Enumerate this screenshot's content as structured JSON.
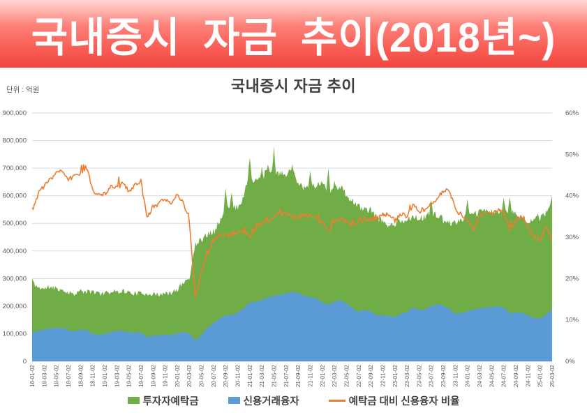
{
  "banner": {
    "title": "국내증시 자금 추이(2018년~)"
  },
  "chart": {
    "title": "국내증시 자금 추이",
    "unit_label": "단위 : 억원",
    "legend": [
      {
        "label": "투자자예탁금",
        "color": "#70ad47",
        "type": "area"
      },
      {
        "label": "신용거래융자",
        "color": "#5b9bd5",
        "type": "area"
      },
      {
        "label": "예탁금 대비 신용융자 비율",
        "color": "#ed7d31",
        "type": "line"
      }
    ]
  },
  "colors": {
    "banner_top": "#ffd6d2",
    "banner_bottom": "#f2453f",
    "green": "#70ad47",
    "blue": "#5b9bd5",
    "orange": "#ed7d31",
    "grid": "#d9d9d9",
    "axis_line": "#c6c6c6",
    "axis_text": "#595959",
    "title_text": "#404040"
  },
  "chart_data": {
    "type": "area",
    "title": "국내증시 자금 추이",
    "legend_position": "bottom",
    "grid": "horizontal",
    "x": [
      "18-01",
      "18-02",
      "18-03",
      "18-04",
      "18-05",
      "18-06",
      "18-07",
      "18-08",
      "18-09",
      "18-10",
      "18-11",
      "18-12",
      "19-01",
      "19-02",
      "19-03",
      "19-04",
      "19-05",
      "19-06",
      "19-07",
      "19-08",
      "19-09",
      "19-10",
      "19-11",
      "19-12",
      "20-01",
      "20-02",
      "20-03",
      "20-04",
      "20-05",
      "20-06",
      "20-07",
      "20-08",
      "20-09",
      "20-10",
      "20-11",
      "20-12",
      "21-01",
      "21-02",
      "21-03",
      "21-04",
      "21-05",
      "21-06",
      "21-07",
      "21-08",
      "21-09",
      "21-10",
      "21-11",
      "21-12",
      "22-01",
      "22-02",
      "22-03",
      "22-04",
      "22-05",
      "22-06",
      "22-07",
      "22-08",
      "22-09",
      "22-10",
      "22-11",
      "22-12",
      "23-01",
      "23-02",
      "23-03",
      "23-04",
      "23-05",
      "23-06",
      "23-07",
      "23-08",
      "23-09",
      "23-10",
      "23-11",
      "23-12",
      "24-01",
      "24-02",
      "24-03",
      "24-04",
      "24-05",
      "24-06",
      "24-07",
      "24-08",
      "24-09",
      "24-10",
      "24-11",
      "24-12",
      "25-01",
      "25-02",
      "25-03"
    ],
    "x_tick_labels": [
      "18-01-02",
      "18-03-02",
      "18-05-02",
      "18-07-02",
      "18-09-02",
      "18-11-02",
      "19-01-02",
      "19-03-02",
      "19-05-02",
      "19-07-02",
      "19-09-02",
      "19-11-02",
      "20-01-02",
      "20-03-02",
      "20-05-02",
      "20-07-02",
      "20-09-02",
      "20-11-02",
      "21-01-02",
      "21-03-02",
      "21-05-02",
      "21-07-02",
      "21-09-02",
      "21-11-02",
      "22-01-02",
      "22-03-02",
      "22-05-02",
      "22-07-02",
      "22-09-02",
      "22-11-02",
      "23-01-02",
      "23-03-02",
      "23-05-02",
      "23-07-02",
      "23-09-02",
      "23-11-02",
      "24-01-02",
      "24-03-02",
      "24-05-02",
      "24-07-02",
      "24-09-02",
      "24-11-02",
      "25-01-02",
      "25-03-02"
    ],
    "y_left": {
      "ticks": [
        "0",
        "100,000",
        "200,000",
        "300,000",
        "400,000",
        "500,000",
        "600,000",
        "700,000",
        "800,000",
        "900,000"
      ],
      "lim": [
        0,
        900000
      ]
    },
    "y_right": {
      "ticks": [
        "0%",
        "10%",
        "20%",
        "30%",
        "40%",
        "50%",
        "60%"
      ],
      "lim": [
        0,
        60
      ]
    },
    "series": [
      {
        "name": "투자자예탁금",
        "axis": "left",
        "type": "area",
        "color": "#70ad47",
        "values": [
          285000,
          268000,
          262000,
          270000,
          266000,
          258000,
          250000,
          246000,
          255000,
          250000,
          254000,
          245000,
          247000,
          251000,
          253000,
          256000,
          249000,
          247000,
          245000,
          247000,
          243000,
          241000,
          245000,
          247000,
          260000,
          285000,
          300000,
          425000,
          440000,
          460000,
          475000,
          505000,
          550000,
          555000,
          560000,
          600000,
          680000,
          650000,
          660000,
          700000,
          670000,
          680000,
          680000,
          690000,
          650000,
          630000,
          640000,
          640000,
          645000,
          620000,
          630000,
          635000,
          600000,
          580000,
          560000,
          555000,
          545000,
          520000,
          510000,
          490000,
          500000,
          510000,
          510000,
          530000,
          520000,
          520000,
          540000,
          530000,
          510000,
          500000,
          505000,
          515000,
          525000,
          530000,
          540000,
          550000,
          540000,
          540000,
          550000,
          545000,
          530000,
          520000,
          510000,
          515000,
          515000,
          535000,
          570000
        ]
      },
      {
        "name": "신용거래융자",
        "axis": "left",
        "type": "area",
        "color": "#5b9bd5",
        "values": [
          104000,
          110000,
          116000,
          120000,
          122000,
          120000,
          112000,
          110000,
          113000,
          115000,
          99000,
          95000,
          98000,
          105000,
          109000,
          112000,
          104000,
          103000,
          105000,
          88000,
          92000,
          94000,
          97000,
          96000,
          102000,
          105000,
          100000,
          75000,
          95000,
          122000,
          138000,
          154000,
          166000,
          168000,
          176000,
          192000,
          212000,
          216000,
          222000,
          232000,
          236000,
          242000,
          246000,
          252000,
          249000,
          238000,
          233000,
          228000,
          214000,
          206000,
          216000,
          222000,
          210000,
          192000,
          178000,
          186000,
          182000,
          166000,
          167000,
          163000,
          160000,
          172000,
          178000,
          196000,
          186000,
          188000,
          200000,
          205000,
          202000,
          190000,
          172000,
          176000,
          182000,
          186000,
          192000,
          196000,
          197000,
          199000,
          197000,
          176000,
          176000,
          176000,
          166000,
          158000,
          156000,
          170000,
          185000
        ]
      },
      {
        "name": "예탁금 대비 신용융자 비율",
        "axis": "right",
        "type": "line",
        "color": "#ed7d31",
        "values": [
          36.5,
          40.5,
          42.5,
          44,
          45.5,
          46,
          44,
          44.5,
          45.5,
          47,
          41.5,
          40,
          40.5,
          42,
          42.5,
          43,
          41,
          42.5,
          43.5,
          34.5,
          37.5,
          38,
          39,
          38.5,
          40,
          38.5,
          34,
          15,
          22,
          26.5,
          29,
          30.5,
          30.5,
          30.5,
          31.5,
          31,
          30,
          32,
          33.5,
          34,
          35,
          35.5,
          36,
          35,
          34.5,
          35.5,
          35,
          34.5,
          33.5,
          31.5,
          34,
          34.5,
          34,
          32.5,
          33.5,
          34.5,
          34,
          34.5,
          35.5,
          35,
          34,
          35.5,
          35,
          38,
          36.5,
          37,
          38,
          39.5,
          41,
          41.5,
          36.5,
          35.5,
          34.5,
          31.5,
          35,
          36,
          35.5,
          36.5,
          36,
          31.5,
          34.5,
          35,
          32.5,
          30,
          29.5,
          32.5,
          29.5
        ]
      }
    ],
    "deposit_spikes": [
      {
        "x": "18-01",
        "value": 300000
      },
      {
        "x": "20-09",
        "value": 628000
      },
      {
        "x": "20-10",
        "value": 612000
      },
      {
        "x": "21-01",
        "value": 738000
      },
      {
        "x": "21-03",
        "value": 705000
      },
      {
        "x": "21-05",
        "value": 780000
      },
      {
        "x": "21-08",
        "value": 715000
      },
      {
        "x": "21-11",
        "value": 690000
      },
      {
        "x": "22-02",
        "value": 700000
      },
      {
        "x": "23-07",
        "value": 585000
      },
      {
        "x": "24-01",
        "value": 588000
      },
      {
        "x": "24-07",
        "value": 592000
      },
      {
        "x": "24-08",
        "value": 595000
      },
      {
        "x": "25-03",
        "value": 600000
      }
    ]
  }
}
